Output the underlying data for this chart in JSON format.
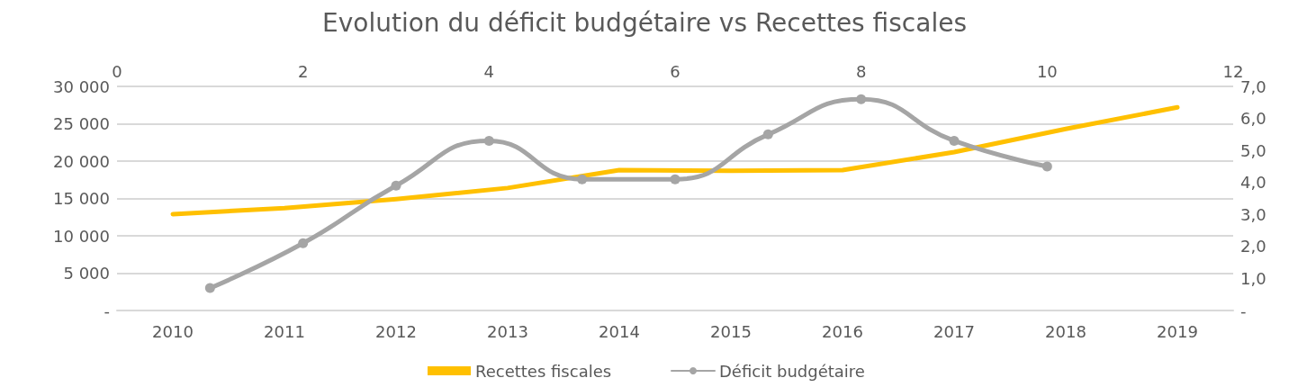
{
  "chart_data": [
    {
      "type": "line",
      "title": "Evolution du déficit budgétaire vs Recettes fiscales",
      "categories": [
        "2010",
        "2011",
        "2012",
        "2013",
        "2014",
        "2015",
        "2016",
        "2017",
        "2018",
        "2019"
      ],
      "series": [
        {
          "name": "Recettes fiscales",
          "color": "#ffc000",
          "marker": "none",
          "values": [
            12900,
            13700,
            14900,
            16400,
            18800,
            18700,
            18800,
            21200,
            24300,
            27200
          ]
        }
      ],
      "ylim": [
        0,
        30000
      ],
      "yticks": [
        {
          "value": 0,
          "label": "-"
        },
        {
          "value": 5000,
          "label": "5 000"
        },
        {
          "value": 10000,
          "label": "10 000"
        },
        {
          "value": 15000,
          "label": "15 000"
        },
        {
          "value": 20000,
          "label": "20 000"
        },
        {
          "value": 25000,
          "label": "25 000"
        },
        {
          "value": 30000,
          "label": "30 000"
        }
      ],
      "grid": "y",
      "legend": "bottom"
    },
    {
      "type": "line",
      "series": [
        {
          "name": "Déficit budgétaire",
          "color": "#a5a5a5",
          "marker": "circle",
          "x": [
            1,
            2,
            3,
            4,
            5,
            6,
            7,
            8,
            9,
            10
          ],
          "values": [
            0.7,
            2.1,
            3.9,
            5.3,
            4.1,
            4.1,
            5.5,
            6.6,
            5.3,
            4.5
          ]
        }
      ],
      "xlim": [
        0,
        12
      ],
      "xticks": [
        0,
        2,
        4,
        6,
        8,
        10,
        12
      ],
      "ylim": [
        0,
        7
      ],
      "yticks": [
        {
          "value": 0,
          "label": "-"
        },
        {
          "value": 1,
          "label": "1,0"
        },
        {
          "value": 2,
          "label": "2,0"
        },
        {
          "value": 3,
          "label": "3,0"
        },
        {
          "value": 4,
          "label": "4,0"
        },
        {
          "value": 5,
          "label": "5,0"
        },
        {
          "value": 6,
          "label": "6,0"
        },
        {
          "value": 7,
          "label": "7,0"
        }
      ],
      "legend": "bottom"
    }
  ]
}
